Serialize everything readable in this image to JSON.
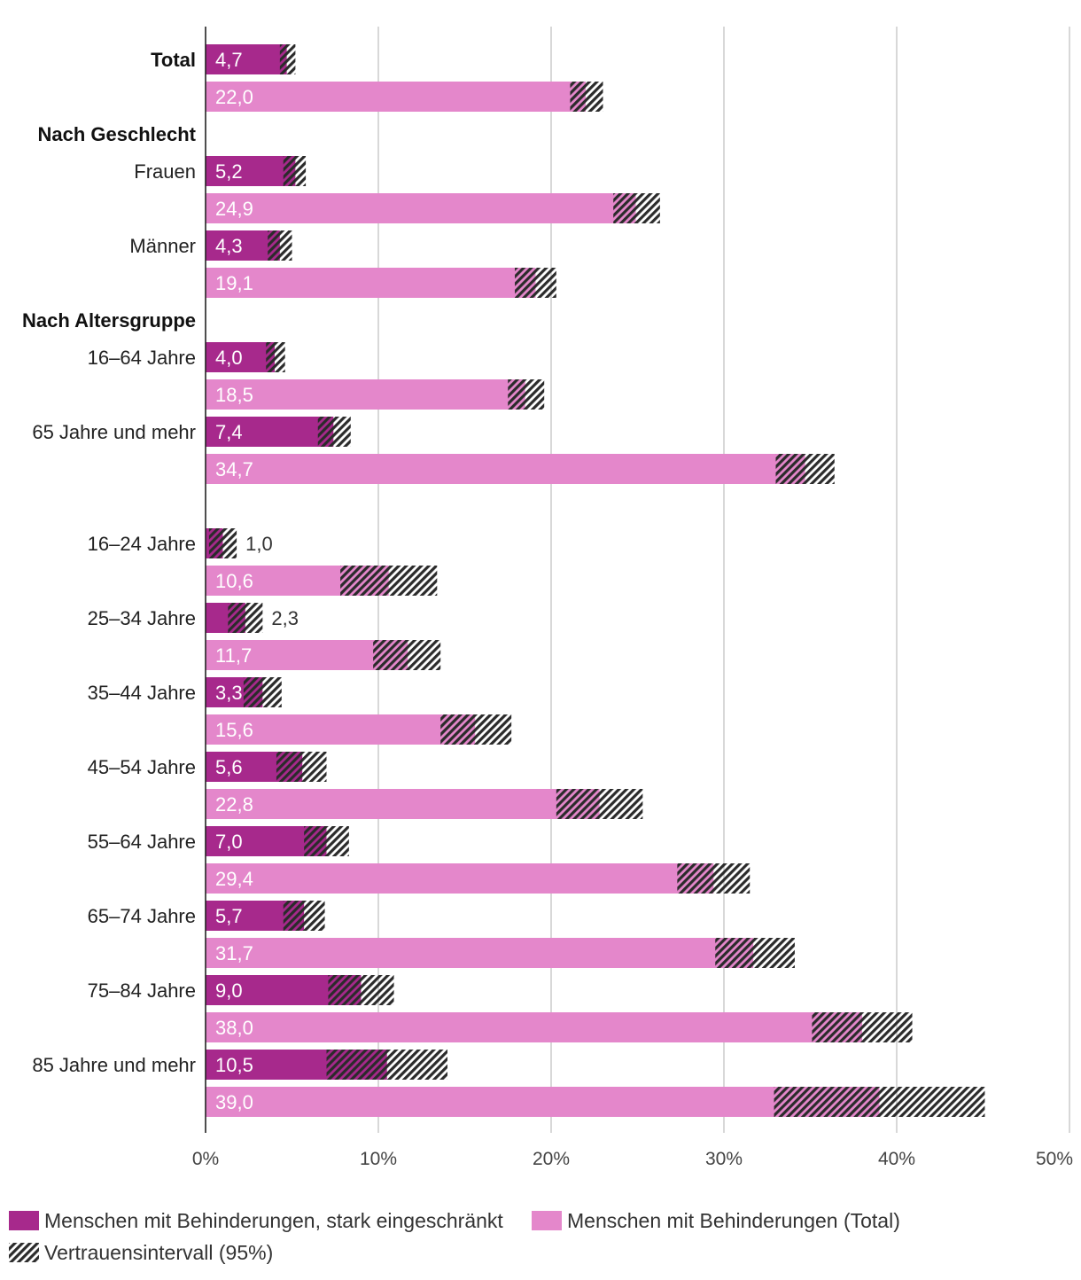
{
  "chart_data": {
    "type": "bar",
    "orientation": "horizontal",
    "xlim": [
      0,
      50
    ],
    "x_ticks": [
      0,
      10,
      20,
      30,
      40,
      50
    ],
    "x_tick_labels": [
      "0%",
      "10%",
      "20%",
      "30%",
      "40%",
      "50%"
    ],
    "grid": true,
    "legend_position": "bottom",
    "series": [
      {
        "name": "Menschen mit Behinderungen, stark eingeschränkt",
        "color": "#A7298C"
      },
      {
        "name": "Menschen mit Behinderungen (Total)",
        "color": "#E487CB"
      }
    ],
    "confidence_interval": {
      "name": "Vertrauensintervall (95%)",
      "color": "#2B2B2B"
    },
    "groups": [
      {
        "rows": [
          {
            "label": "Total",
            "values": [
              4.7,
              22.0
            ],
            "labels": [
              "4,7",
              "22,0"
            ],
            "ci": [
              [
                4.3,
                5.2
              ],
              [
                21.1,
                23.0
              ]
            ]
          }
        ]
      },
      {
        "heading": "Nach Geschlecht",
        "rows": [
          {
            "label": "Frauen",
            "values": [
              5.2,
              24.9
            ],
            "labels": [
              "5,2",
              "24,9"
            ],
            "ci": [
              [
                4.5,
                5.8
              ],
              [
                23.6,
                26.3
              ]
            ]
          },
          {
            "label": "Männer",
            "values": [
              4.3,
              19.1
            ],
            "labels": [
              "4,3",
              "19,1"
            ],
            "ci": [
              [
                3.6,
                5.0
              ],
              [
                17.9,
                20.3
              ]
            ]
          }
        ]
      },
      {
        "heading": "Nach Altersgruppe",
        "rows": [
          {
            "label": "16–64 Jahre",
            "values": [
              4.0,
              18.5
            ],
            "labels": [
              "4,0",
              "18,5"
            ],
            "ci": [
              [
                3.5,
                4.6
              ],
              [
                17.5,
                19.6
              ]
            ]
          },
          {
            "label": "65 Jahre und mehr",
            "values": [
              7.4,
              34.7
            ],
            "labels": [
              "7,4",
              "34,7"
            ],
            "ci": [
              [
                6.5,
                8.4
              ],
              [
                33.0,
                36.4
              ]
            ]
          }
        ]
      },
      {
        "rows": [
          {
            "label": "16–24 Jahre",
            "values": [
              1.0,
              10.6
            ],
            "labels": [
              "1,0",
              "10,6"
            ],
            "ci": [
              [
                0.2,
                1.8
              ],
              [
                7.8,
                13.4
              ]
            ]
          },
          {
            "label": "25–34 Jahre",
            "values": [
              2.3,
              11.7
            ],
            "labels": [
              "2,3",
              "11,7"
            ],
            "ci": [
              [
                1.3,
                3.3
              ],
              [
                9.7,
                13.6
              ]
            ]
          },
          {
            "label": "35–44 Jahre",
            "values": [
              3.3,
              15.6
            ],
            "labels": [
              "3,3",
              "15,6"
            ],
            "ci": [
              [
                2.2,
                4.4
              ],
              [
                13.6,
                17.7
              ]
            ]
          },
          {
            "label": "45–54 Jahre",
            "values": [
              5.6,
              22.8
            ],
            "labels": [
              "5,6",
              "22,8"
            ],
            "ci": [
              [
                4.1,
                7.0
              ],
              [
                20.3,
                25.3
              ]
            ]
          },
          {
            "label": "55–64 Jahre",
            "values": [
              7.0,
              29.4
            ],
            "labels": [
              "7,0",
              "29,4"
            ],
            "ci": [
              [
                5.7,
                8.3
              ],
              [
                27.3,
                31.5
              ]
            ]
          },
          {
            "label": "65–74 Jahre",
            "values": [
              5.7,
              31.7
            ],
            "labels": [
              "5,7",
              "31,7"
            ],
            "ci": [
              [
                4.5,
                6.9
              ],
              [
                29.5,
                34.1
              ]
            ]
          },
          {
            "label": "75–84 Jahre",
            "values": [
              9.0,
              38.0
            ],
            "labels": [
              "9,0",
              "38,0"
            ],
            "ci": [
              [
                7.1,
                10.9
              ],
              [
                35.1,
                40.9
              ]
            ]
          },
          {
            "label": "85 Jahre und mehr",
            "values": [
              10.5,
              39.0
            ],
            "labels": [
              "10,5",
              "39,0"
            ],
            "ci": [
              [
                7.0,
                14.0
              ],
              [
                32.9,
                45.1
              ]
            ]
          }
        ]
      }
    ]
  }
}
